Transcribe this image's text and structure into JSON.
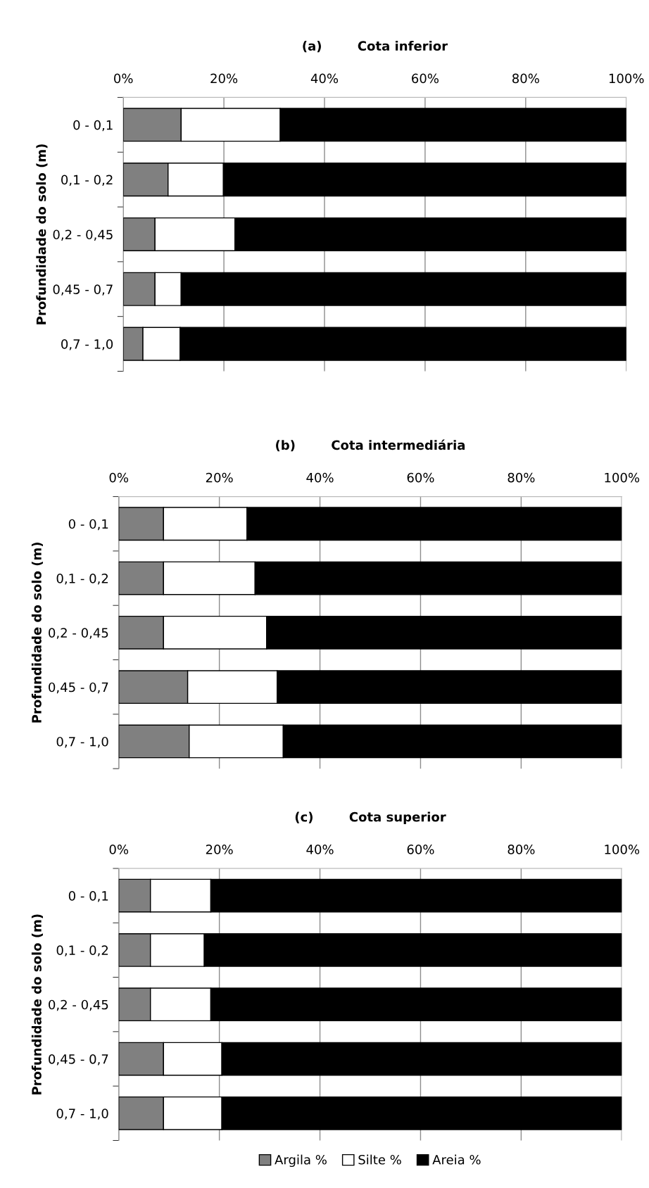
{
  "chart_data": [
    {
      "type": "bar",
      "title": "(a)        Cota inferior",
      "ylabel": "Profundidade do solo (m)",
      "orientation": "horizontal",
      "stacked": true,
      "grid": "x",
      "categories": [
        "0 - 0,1",
        "0,1 - 0,2",
        "0,2 - 0,45",
        "0,45 - 0,7",
        "0,7 - 1,0"
      ],
      "xlim": [
        0,
        100
      ],
      "xticks": [
        {
          "value": 0,
          "label": "0%"
        },
        {
          "value": 20,
          "label": "20%"
        },
        {
          "value": 40,
          "label": "40%"
        },
        {
          "value": 60,
          "label": "60%"
        },
        {
          "value": 80,
          "label": "80%"
        },
        {
          "value": 100,
          "label": "100%"
        }
      ],
      "series": [
        {
          "color": "#808080",
          "values": [
            11.5,
            8.9,
            6.3,
            6.3,
            3.9
          ]
        },
        {
          "color": "#ffffff",
          "values": [
            19.7,
            11.0,
            15.9,
            5.2,
            7.4
          ]
        },
        {
          "color": "#000000",
          "values": [
            68.8,
            80.1,
            77.8,
            88.5,
            88.7
          ]
        }
      ]
    },
    {
      "type": "bar",
      "title": "(b)        Cota intermediária",
      "ylabel": "Profundidade do solo (m)",
      "orientation": "horizontal",
      "stacked": true,
      "grid": "x",
      "categories": [
        "0 - 0,1",
        "0,1 - 0,2",
        "0,2 - 0,45",
        "0,45 - 0,7",
        "0,7 - 1,0"
      ],
      "xlim": [
        0,
        100
      ],
      "xticks": [
        {
          "value": 0,
          "label": "0%"
        },
        {
          "value": 20,
          "label": "20%"
        },
        {
          "value": 40,
          "label": "40%"
        },
        {
          "value": 60,
          "label": "60%"
        },
        {
          "value": 80,
          "label": "80%"
        },
        {
          "value": 100,
          "label": "100%"
        }
      ],
      "series": [
        {
          "color": "#808080",
          "values": [
            8.9,
            8.9,
            8.9,
            13.7,
            14.0
          ]
        },
        {
          "color": "#ffffff",
          "values": [
            16.6,
            18.2,
            20.5,
            17.8,
            18.7
          ]
        },
        {
          "color": "#000000",
          "values": [
            74.5,
            72.9,
            70.6,
            68.5,
            67.3
          ]
        }
      ]
    },
    {
      "type": "bar",
      "title": "(c)        Cota superior",
      "ylabel": "Profundidade do solo (m)",
      "orientation": "horizontal",
      "stacked": true,
      "grid": "x",
      "legend": "bottom",
      "categories": [
        "0 - 0,1",
        "0,1 - 0,2",
        "0,2 - 0,45",
        "0,45 - 0,7",
        "0,7 - 1,0"
      ],
      "xlim": [
        0,
        100
      ],
      "xticks": [
        {
          "value": 0,
          "label": "0%"
        },
        {
          "value": 20,
          "label": "20%"
        },
        {
          "value": 40,
          "label": "40%"
        },
        {
          "value": 60,
          "label": "60%"
        },
        {
          "value": 80,
          "label": "80%"
        },
        {
          "value": 100,
          "label": "100%"
        }
      ],
      "series": [
        {
          "name": "Argila %",
          "color": "#808080",
          "values": [
            6.3,
            6.3,
            6.3,
            8.9,
            8.9
          ]
        },
        {
          "name": "Silte %",
          "color": "#ffffff",
          "values": [
            12.0,
            10.7,
            12.0,
            11.6,
            11.6
          ]
        },
        {
          "name": "Areia %",
          "color": "#000000",
          "values": [
            81.7,
            83.0,
            81.7,
            79.5,
            79.5
          ]
        }
      ]
    }
  ]
}
